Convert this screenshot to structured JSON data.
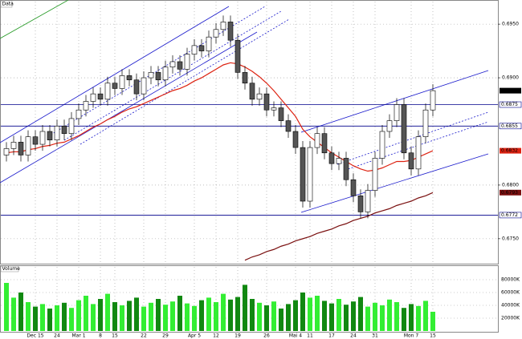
{
  "chart_data": {
    "type": "candlestick",
    "title": "Data",
    "volume_title": "Volume",
    "categories": [
      null,
      null,
      null,
      null,
      "Dec 15",
      null,
      null,
      "24",
      null,
      null,
      "Mar 1",
      null,
      null,
      "8",
      null,
      "15",
      null,
      null,
      null,
      "22",
      null,
      null,
      "29",
      null,
      null,
      null,
      "Apr 5",
      null,
      null,
      "12",
      null,
      null,
      "19",
      null,
      null,
      null,
      "26",
      null,
      null,
      null,
      "Mai 4",
      null,
      "11",
      null,
      null,
      "17",
      null,
      null,
      "24",
      null,
      null,
      "31",
      null,
      null,
      null,
      null,
      "Mon 7",
      null,
      null,
      "15"
    ],
    "open": [
      0.6828,
      0.6834,
      0.684,
      0.6828,
      0.6845,
      0.6838,
      0.685,
      0.6842,
      0.6855,
      0.6848,
      0.6862,
      0.687,
      0.6878,
      0.6885,
      0.688,
      0.6895,
      0.689,
      0.6902,
      0.6898,
      0.6885,
      0.69,
      0.6905,
      0.6898,
      0.691,
      0.6915,
      0.6908,
      0.6922,
      0.693,
      0.6925,
      0.6938,
      0.6945,
      0.6952,
      0.6935,
      0.6905,
      0.6895,
      0.688,
      0.6885,
      0.687,
      0.6872,
      0.686,
      0.685,
      0.6835,
      0.6785,
      0.6835,
      0.6848,
      0.683,
      0.682,
      0.6825,
      0.6805,
      0.679,
      0.6775,
      0.6795,
      0.6825,
      0.685,
      0.686,
      0.6875,
      0.683,
      0.6815,
      0.6845,
      0.687
    ],
    "high": [
      0.684,
      0.6846,
      0.6846,
      0.6851,
      0.6851,
      0.6856,
      0.6856,
      0.6861,
      0.6861,
      0.6868,
      0.6876,
      0.6884,
      0.6891,
      0.6891,
      0.6901,
      0.6901,
      0.6908,
      0.6908,
      0.6904,
      0.6906,
      0.6911,
      0.6911,
      0.6916,
      0.6921,
      0.6921,
      0.6928,
      0.6936,
      0.6936,
      0.6944,
      0.6951,
      0.6958,
      0.6958,
      0.6941,
      0.6911,
      0.6901,
      0.6891,
      0.6891,
      0.6878,
      0.6878,
      0.6866,
      0.6856,
      0.6841,
      0.6841,
      0.6854,
      0.6854,
      0.6836,
      0.6831,
      0.6831,
      0.6811,
      0.6796,
      0.6801,
      0.6831,
      0.6856,
      0.6866,
      0.6881,
      0.6881,
      0.6836,
      0.6851,
      0.6876,
      0.6894
    ],
    "low": [
      0.6822,
      0.6828,
      0.6822,
      0.6822,
      0.6832,
      0.6832,
      0.6836,
      0.6836,
      0.6842,
      0.6842,
      0.6856,
      0.6864,
      0.6872,
      0.6874,
      0.6874,
      0.6884,
      0.6884,
      0.6892,
      0.6879,
      0.6879,
      0.6894,
      0.6892,
      0.6892,
      0.6904,
      0.6902,
      0.6902,
      0.6916,
      0.6919,
      0.6919,
      0.6932,
      0.6939,
      0.6929,
      0.6899,
      0.6889,
      0.6874,
      0.6874,
      0.6864,
      0.6864,
      0.6854,
      0.6844,
      0.6829,
      0.6779,
      0.6779,
      0.6829,
      0.6824,
      0.6814,
      0.6814,
      0.6799,
      0.6784,
      0.6769,
      0.6769,
      0.6789,
      0.6819,
      0.6844,
      0.6854,
      0.6824,
      0.6809,
      0.6809,
      0.6839,
      0.6864
    ],
    "close": [
      0.6834,
      0.684,
      0.6828,
      0.6845,
      0.6838,
      0.685,
      0.6842,
      0.6855,
      0.6848,
      0.6862,
      0.687,
      0.6878,
      0.6885,
      0.688,
      0.6895,
      0.689,
      0.6902,
      0.6898,
      0.6885,
      0.69,
      0.6905,
      0.6898,
      0.691,
      0.6915,
      0.6908,
      0.6922,
      0.693,
      0.6925,
      0.6938,
      0.6945,
      0.6952,
      0.6935,
      0.6905,
      0.6895,
      0.688,
      0.6885,
      0.687,
      0.6872,
      0.686,
      0.685,
      0.6835,
      0.6785,
      0.6835,
      0.6848,
      0.683,
      0.682,
      0.6825,
      0.6805,
      0.679,
      0.6775,
      0.6795,
      0.6825,
      0.685,
      0.686,
      0.6875,
      0.683,
      0.6815,
      0.6845,
      0.687,
      0.6888
    ],
    "series": [
      {
        "color": "#dd2211",
        "values": [
          0.683,
          0.6831,
          0.6831,
          0.6833,
          0.6834,
          0.6836,
          0.6837,
          0.6839,
          0.684,
          0.6843,
          0.6846,
          0.685,
          0.6854,
          0.6857,
          0.6861,
          0.6864,
          0.6868,
          0.6871,
          0.6873,
          0.6876,
          0.6879,
          0.6882,
          0.6885,
          0.6888,
          0.689,
          0.6893,
          0.6897,
          0.69,
          0.6904,
          0.6908,
          0.6912,
          0.6914,
          0.6913,
          0.691,
          0.6906,
          0.6901,
          0.6895,
          0.6888,
          0.688,
          0.6872,
          0.6864,
          0.6852,
          0.6845,
          0.684,
          0.6835,
          0.683,
          0.6826,
          0.6822,
          0.6818,
          0.6815,
          0.6813,
          0.6814,
          0.6816,
          0.6819,
          0.6822,
          0.6822,
          0.6823,
          0.6826,
          0.6829,
          0.6832
        ]
      },
      {
        "color": "#7a1010",
        "values": [
          null,
          null,
          null,
          null,
          null,
          null,
          null,
          null,
          null,
          null,
          null,
          null,
          null,
          null,
          null,
          null,
          null,
          null,
          null,
          null,
          null,
          null,
          null,
          null,
          null,
          null,
          null,
          null,
          null,
          null,
          null,
          null,
          null,
          0.673,
          0.6733,
          0.6735,
          0.6738,
          0.674,
          0.6743,
          0.6745,
          0.6748,
          0.675,
          0.6752,
          0.6755,
          0.6757,
          0.6759,
          0.6762,
          0.6764,
          0.6767,
          0.6769,
          0.6771,
          0.6774,
          0.6776,
          0.6778,
          0.6781,
          0.6783,
          0.6785,
          0.6788,
          0.679,
          0.6793
        ]
      }
    ],
    "ylim": [
      0.6726,
      0.6971
    ],
    "yticks": [
      {
        "value": 0.695,
        "label": "0.6950"
      },
      {
        "value": 0.69,
        "label": "0.6900"
      },
      {
        "value": 0.68,
        "label": "0.6800"
      },
      {
        "value": 0.675,
        "label": "0.6750"
      }
    ],
    "levels": [
      {
        "value": 0.6875,
        "label": "0.6875"
      },
      {
        "value": 0.6855,
        "label": "0.6855"
      },
      {
        "value": 0.6772,
        "label": "0.6772"
      }
    ],
    "level_color": "#00008b",
    "price_boxes": [
      {
        "value": 0.6888,
        "label": "0.6888",
        "color": "#000000"
      },
      {
        "value": 0.6832,
        "label": "0.6832",
        "color": "#dd2211"
      },
      {
        "value": 0.6793,
        "label": "0.6793",
        "color": "#7a1010"
      }
    ],
    "up_color": "#ffffff",
    "down_color": "#555555",
    "volume": [
      75000,
      52000,
      60000,
      45000,
      38000,
      42000,
      35000,
      40000,
      44000,
      36000,
      48000,
      55000,
      42000,
      50000,
      58000,
      45000,
      40000,
      47000,
      52000,
      38000,
      44000,
      50000,
      41000,
      46000,
      55000,
      43000,
      39000,
      48000,
      52000,
      45000,
      58000,
      49000,
      53000,
      72000,
      50000,
      44000,
      40000,
      46000,
      35000,
      42000,
      48000,
      60000,
      52000,
      55000,
      47000,
      43000,
      50000,
      41000,
      46000,
      53000,
      38000,
      44000,
      40000,
      49000,
      45000,
      36000,
      42000,
      39000,
      47000,
      30000
    ],
    "volume_up_color": "#33ee33",
    "volume_down_color": "#118811",
    "vlim": [
      0,
      100000
    ],
    "vticks": [
      {
        "value": 80000,
        "label": "80000K"
      },
      {
        "value": 60000,
        "label": "60000K"
      },
      {
        "value": 40000,
        "label": "40000K"
      },
      {
        "value": 20000,
        "label": "20000K"
      }
    ],
    "grid": true
  }
}
